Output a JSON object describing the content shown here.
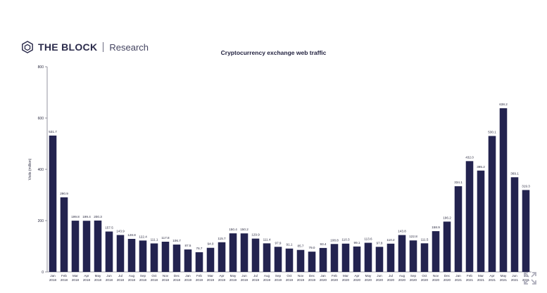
{
  "brand": {
    "name": "THE BLOCK",
    "sub": "Research",
    "logo_icon": "cube-icon"
  },
  "expand_icon": "expand-icon",
  "colors": {
    "bar": "#23234f",
    "axis": "#7a7a88",
    "text": "#2a2a40"
  },
  "chart_data": {
    "type": "bar",
    "title": "Cryptocurrency exchange web traffic",
    "ylabel": "Visits (million)",
    "xlabel": "",
    "ylim": [
      0,
      800
    ],
    "yticks": [
      "0",
      "200",
      "400",
      "600",
      "800"
    ],
    "grid": false,
    "categories": [
      [
        "Jan",
        "2018"
      ],
      [
        "Feb",
        "2018"
      ],
      [
        "Mar",
        "2018"
      ],
      [
        "Apr",
        "2018"
      ],
      [
        "May",
        "2018"
      ],
      [
        "Jun",
        "2018"
      ],
      [
        "Jul",
        "2018"
      ],
      [
        "Aug",
        "2018"
      ],
      [
        "Sep",
        "2018"
      ],
      [
        "Oct",
        "2018"
      ],
      [
        "Nov",
        "2018"
      ],
      [
        "Dec",
        "2018"
      ],
      [
        "Jan",
        "2019"
      ],
      [
        "Feb",
        "2019"
      ],
      [
        "Mar",
        "2019"
      ],
      [
        "Apr",
        "2019"
      ],
      [
        "May",
        "2019"
      ],
      [
        "Jun",
        "2019"
      ],
      [
        "Jul",
        "2019"
      ],
      [
        "Aug",
        "2019"
      ],
      [
        "Sep",
        "2019"
      ],
      [
        "Oct",
        "2019"
      ],
      [
        "Nov",
        "2019"
      ],
      [
        "Dec",
        "2019"
      ],
      [
        "Jan",
        "2020"
      ],
      [
        "Feb",
        "2020"
      ],
      [
        "Mar",
        "2020"
      ],
      [
        "Apr",
        "2020"
      ],
      [
        "May",
        "2020"
      ],
      [
        "Jun",
        "2020"
      ],
      [
        "Jul",
        "2020"
      ],
      [
        "Aug",
        "2020"
      ],
      [
        "Sep",
        "2020"
      ],
      [
        "Oct",
        "2020"
      ],
      [
        "Nov",
        "2020"
      ],
      [
        "Dec",
        "2020"
      ],
      [
        "Jan",
        "2021"
      ],
      [
        "Feb",
        "2021"
      ],
      [
        "Mar",
        "2021"
      ],
      [
        "Apr",
        "2021"
      ],
      [
        "May",
        "2021"
      ],
      [
        "Jun",
        "2021"
      ],
      [
        "Jul",
        "2021"
      ]
    ],
    "values": [
      531.7,
      290.9,
      199.8,
      199.4,
      200.3,
      157.5,
      143.9,
      128.8,
      122.4,
      111.1,
      117.8,
      106.7,
      87.5,
      76.7,
      94.0,
      115.7,
      150.4,
      150.2,
      129.9,
      111.4,
      97.9,
      91.1,
      85.7,
      79.0,
      93.4,
      108.8,
      110.3,
      99.1,
      113.6,
      97.8,
      110.2,
      143.8,
      122.8,
      111.5,
      158.9,
      196.2,
      334.1,
      432.0,
      395.2,
      530.1,
      638.2,
      369.1,
      319.3
    ]
  }
}
